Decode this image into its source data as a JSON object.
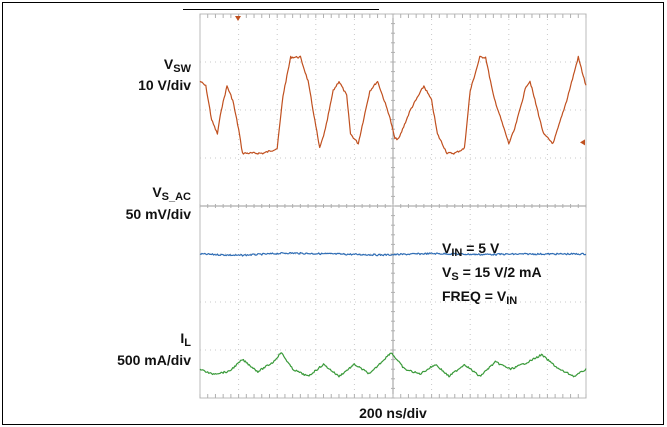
{
  "chart_data": {
    "type": "line",
    "title": "",
    "xlabel": "200 ns/div",
    "x_divisions": 10,
    "y_divisions": 8,
    "grid": true,
    "time_per_div_ns": 200,
    "x_range_ns": [
      0,
      2000
    ],
    "series": [
      {
        "name": "VSW",
        "channel_label": {
          "main": "V",
          "sub": "SW"
        },
        "scale_text": "10 V/div",
        "color": "#c0501f",
        "baseline_div": 5.2,
        "x_ns": [
          0,
          30,
          60,
          90,
          110,
          140,
          170,
          200,
          220,
          330,
          400,
          430,
          470,
          520,
          560,
          620,
          650,
          690,
          720,
          760,
          780,
          820,
          880,
          920,
          980,
          1010,
          1030,
          1090,
          1160,
          1200,
          1230,
          1280,
          1320,
          1370,
          1400,
          1450,
          1480,
          1520,
          1600,
          1630,
          1690,
          1710,
          1780,
          1830,
          1900,
          1960,
          2000
        ],
        "y_div": [
          6.6,
          6.5,
          5.8,
          5.5,
          6.0,
          6.5,
          6.2,
          5.6,
          5.1,
          5.1,
          5.2,
          6.3,
          7.1,
          7.1,
          6.6,
          5.2,
          5.6,
          6.4,
          6.6,
          6.3,
          5.5,
          5.3,
          6.4,
          6.6,
          5.9,
          5.4,
          5.4,
          6.0,
          6.5,
          6.2,
          5.5,
          5.1,
          5.1,
          5.2,
          6.4,
          7.1,
          7.1,
          6.3,
          5.3,
          5.6,
          6.5,
          6.6,
          5.5,
          5.3,
          6.2,
          7.1,
          6.5
        ]
      },
      {
        "name": "VS_AC",
        "channel_label": {
          "main": "V",
          "sub": "S_AC"
        },
        "scale_text": "50 mV/div",
        "color": "#2f6db5",
        "baseline_div": 3.0,
        "x_ns": [
          0,
          200,
          450,
          700,
          950,
          1200,
          1450,
          1700,
          2000
        ],
        "y_div": [
          3.0,
          2.97,
          3.02,
          3.0,
          2.98,
          3.01,
          2.99,
          3.0,
          3.0
        ]
      },
      {
        "name": "IL",
        "channel_label": {
          "main": "I",
          "sub": "L"
        },
        "scale_text": "500 mA/div",
        "color": "#3a9a3a",
        "baseline_div": 0.5,
        "x_ns": [
          0,
          60,
          150,
          220,
          300,
          380,
          420,
          480,
          560,
          640,
          720,
          800,
          880,
          940,
          990,
          1060,
          1140,
          1220,
          1290,
          1370,
          1450,
          1530,
          1610,
          1700,
          1770,
          1860,
          1940,
          2000
        ],
        "y_div": [
          0.6,
          0.5,
          0.55,
          0.8,
          0.55,
          0.75,
          0.95,
          0.6,
          0.45,
          0.7,
          0.45,
          0.7,
          0.5,
          0.75,
          0.95,
          0.6,
          0.5,
          0.7,
          0.45,
          0.7,
          0.45,
          0.75,
          0.6,
          0.75,
          0.9,
          0.6,
          0.45,
          0.6
        ]
      }
    ],
    "annotations": [
      {
        "main": "V",
        "sub": "IN",
        "rest": " = 5 V"
      },
      {
        "main": "V",
        "sub": "S",
        "rest": " = 15 V/2 mA"
      },
      {
        "main": "FREQ = V",
        "sub": "IN",
        "rest": ""
      }
    ]
  }
}
